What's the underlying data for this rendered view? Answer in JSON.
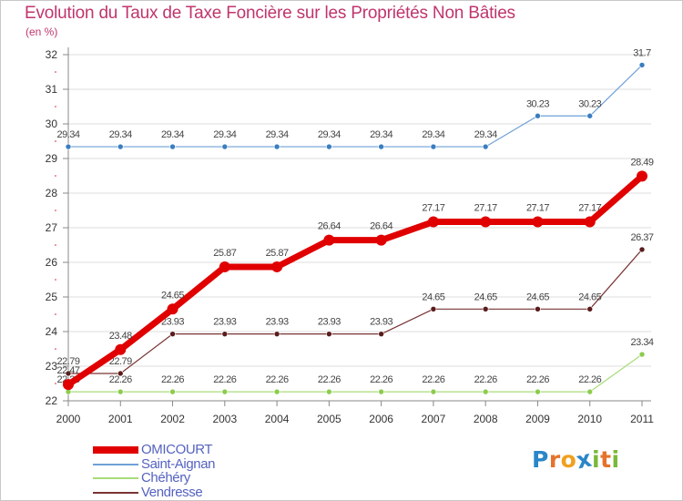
{
  "title": "Evolution du Taux de Taxe Foncière sur les Propriétés Non Bâties",
  "subtitle": "(en %)",
  "logo": {
    "letters": [
      "P",
      "r",
      "o",
      "x",
      "i",
      "t",
      "i"
    ],
    "colors": [
      "#2a86c8",
      "#e5732b",
      "#f0a020",
      "#2a86c8",
      "#7ab83a",
      "#e5732b",
      "#7ab83a"
    ]
  },
  "colors": {
    "title": "#c0356c",
    "axis": "#888888",
    "grid": "#dddddd",
    "tick_label": "#333333",
    "point_label": "#444444"
  },
  "chart_data": {
    "type": "line",
    "title": "Evolution du Taux de Taxe Foncière sur les Propriétés Non Bâties",
    "ylabel": "(en %)",
    "xlabel": "",
    "ylim": [
      22,
      32
    ],
    "yticks": [
      22,
      23,
      24,
      25,
      26,
      27,
      28,
      29,
      30,
      31,
      32
    ],
    "grid": "horizontal",
    "x": [
      "2000",
      "2001",
      "2002",
      "2003",
      "2004",
      "2005",
      "2006",
      "2007",
      "2008",
      "2009",
      "2010",
      "2011"
    ],
    "series": [
      {
        "name": "Saint-Aignan",
        "color": "#6fa0d6",
        "marker": "#3a7ec0",
        "width": 1.2,
        "radius": 3,
        "values": [
          29.34,
          29.34,
          29.34,
          29.34,
          29.34,
          29.34,
          29.34,
          29.34,
          29.34,
          30.23,
          30.23,
          31.7
        ],
        "labels": [
          "29.34",
          "29.34",
          "29.34",
          "29.34",
          "29.34",
          "29.34",
          "29.34",
          "29.34",
          "29.34",
          "30.23",
          "30.23",
          "31.7"
        ]
      },
      {
        "name": "Chéhéry",
        "color": "#a8dc7a",
        "marker": "#8ccc4c",
        "width": 1.2,
        "radius": 3,
        "values": [
          22.26,
          22.26,
          22.26,
          22.26,
          22.26,
          22.26,
          22.26,
          22.26,
          22.26,
          22.26,
          22.26,
          23.34
        ],
        "labels": [
          "22.26",
          "22.26",
          "22.26",
          "22.26",
          "22.26",
          "22.26",
          "22.26",
          "22.26",
          "22.26",
          "22.26",
          "22.26",
          "23.34"
        ]
      },
      {
        "name": "Vendresse",
        "color": "#7a3434",
        "marker": "#5a1c1c",
        "width": 1.2,
        "radius": 3,
        "values": [
          22.79,
          22.79,
          23.93,
          23.93,
          23.93,
          23.93,
          23.93,
          24.65,
          24.65,
          24.65,
          24.65,
          26.37
        ],
        "labels": [
          "22.79",
          "22.79",
          "23.93",
          "23.93",
          "23.93",
          "23.93",
          "23.93",
          "24.65",
          "24.65",
          "24.65",
          "24.65",
          "26.37"
        ]
      },
      {
        "name": "OMICOURT",
        "color": "#e00000",
        "marker": "#e00000",
        "width": 7,
        "radius": 6,
        "values": [
          22.47,
          23.48,
          24.65,
          25.87,
          25.87,
          26.64,
          26.64,
          27.17,
          27.17,
          27.17,
          27.17,
          28.49
        ],
        "labels": [
          "22.47",
          "23.48",
          "24.65",
          "25.87",
          "25.87",
          "26.64",
          "26.64",
          "27.17",
          "27.17",
          "27.17",
          "27.17",
          "28.49"
        ]
      }
    ],
    "legend": {
      "placement": "bottom-left",
      "order": [
        "OMICOURT",
        "Saint-Aignan",
        "Chéhéry",
        "Vendresse"
      ]
    }
  }
}
